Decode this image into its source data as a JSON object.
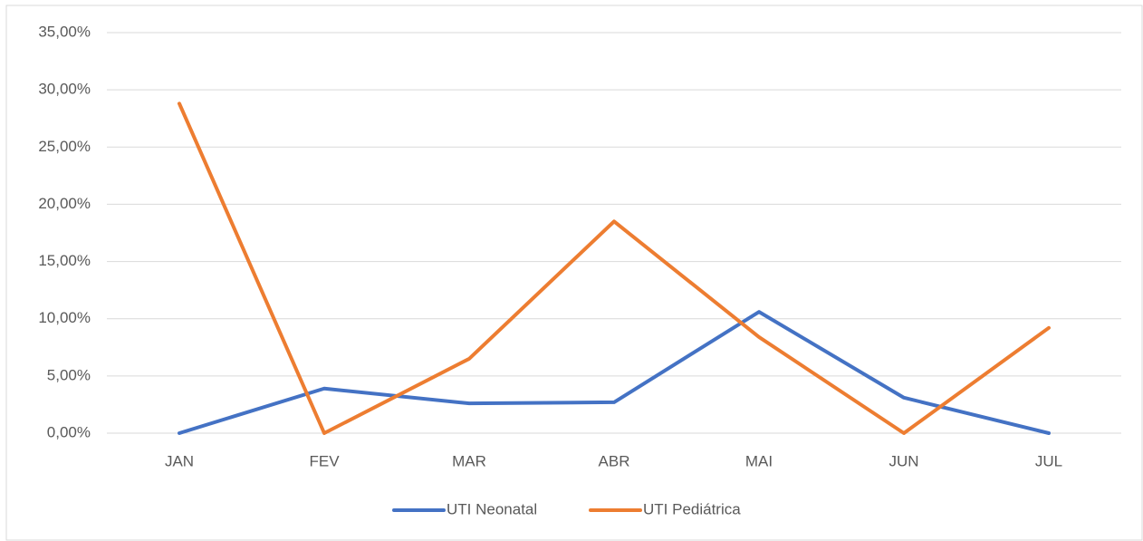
{
  "chart_data": {
    "type": "line",
    "categories": [
      "JAN",
      "FEV",
      "MAR",
      "ABR",
      "MAI",
      "JUN",
      "JUL"
    ],
    "series": [
      {
        "name": "UTI Neonatal",
        "color": "#4472c4",
        "values": [
          0,
          3.9,
          2.6,
          2.7,
          10.6,
          3.1,
          0
        ]
      },
      {
        "name": "UTI Pediátrica",
        "color": "#ed7d31",
        "values": [
          28.8,
          0,
          6.5,
          18.5,
          8.4,
          0,
          9.2
        ]
      }
    ],
    "ylim": [
      0,
      35
    ],
    "yticks": [
      {
        "value": 0,
        "label": "0,00%"
      },
      {
        "value": 5,
        "label": "5,00%"
      },
      {
        "value": 10,
        "label": "10,00%"
      },
      {
        "value": 15,
        "label": "15,00%"
      },
      {
        "value": 20,
        "label": "20,00%"
      },
      {
        "value": 25,
        "label": "25,00%"
      },
      {
        "value": 30,
        "label": "30,00%"
      },
      {
        "value": 35,
        "label": "35,00%"
      }
    ],
    "grid": true,
    "legend": "bottom"
  }
}
